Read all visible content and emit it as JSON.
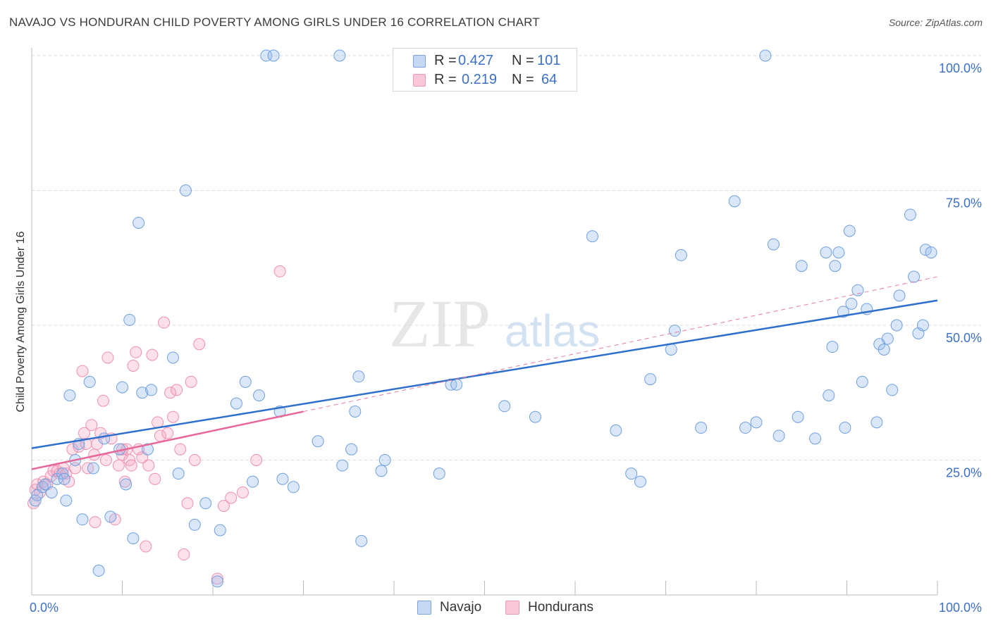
{
  "title": "NAVAJO VS HONDURAN CHILD POVERTY AMONG GIRLS UNDER 16 CORRELATION CHART",
  "source": "Source: ZipAtlas.com",
  "watermark": {
    "zip": "ZIP",
    "atlas": "atlas"
  },
  "legend": {
    "rows": [
      {
        "r_label": "R =",
        "r_value": "0.427",
        "n_label": "N =",
        "n_value": "101",
        "color": "#6f9fe0"
      },
      {
        "r_label": "R =",
        "r_value": "0.219",
        "n_label": "N =",
        "n_value": "64",
        "color": "#f08fb0"
      }
    ]
  },
  "bottom_legend": [
    {
      "label": "Navajo",
      "color": "#6f9fe0"
    },
    {
      "label": "Hondurans",
      "color": "#f08fb0"
    }
  ],
  "chart_data": {
    "type": "scatter",
    "title": "NAVAJO VS HONDURAN CHILD POVERTY AMONG GIRLS UNDER 16 CORRELATION CHART",
    "xlabel": "",
    "ylabel": "Child Poverty Among Girls Under 16",
    "xlim": [
      0,
      100
    ],
    "ylim": [
      0,
      100
    ],
    "x_tick_labels": [
      "0.0%",
      "100.0%"
    ],
    "y_ticks": [
      25,
      50,
      75,
      100
    ],
    "y_tick_labels": [
      "25.0%",
      "50.0%",
      "75.0%",
      "100.0%"
    ],
    "grid": true,
    "legend_position": "top-center",
    "series": [
      {
        "name": "Navajo",
        "color": "#6f9fe0",
        "trend": {
          "x": [
            0,
            100
          ],
          "y": [
            27.2,
            54.6
          ],
          "style": "solid"
        },
        "points": [
          [
            0.4,
            17.5
          ],
          [
            0.6,
            18.5
          ],
          [
            1.2,
            20
          ],
          [
            1.5,
            20.5
          ],
          [
            2.2,
            19
          ],
          [
            2.8,
            21.5
          ],
          [
            3.4,
            22.5
          ],
          [
            3.6,
            21.5
          ],
          [
            3.8,
            17.5
          ],
          [
            4.2,
            37
          ],
          [
            4.8,
            25
          ],
          [
            5.2,
            28
          ],
          [
            5.6,
            14
          ],
          [
            6.4,
            39.5
          ],
          [
            6.8,
            23.5
          ],
          [
            7.4,
            4.5
          ],
          [
            8.0,
            29
          ],
          [
            8.7,
            14.5
          ],
          [
            9.7,
            27
          ],
          [
            10.0,
            38.5
          ],
          [
            10.4,
            20.5
          ],
          [
            10.8,
            51
          ],
          [
            11.2,
            10.5
          ],
          [
            11.8,
            69
          ],
          [
            12.2,
            37.5
          ],
          [
            12.8,
            27
          ],
          [
            13.2,
            38
          ],
          [
            15.6,
            44
          ],
          [
            16.2,
            22.5
          ],
          [
            17.0,
            75
          ],
          [
            18.0,
            13
          ],
          [
            19.2,
            17
          ],
          [
            20.5,
            2.5
          ],
          [
            20.8,
            12
          ],
          [
            22.6,
            35.5
          ],
          [
            23.6,
            39.5
          ],
          [
            24.4,
            21
          ],
          [
            25.1,
            37
          ],
          [
            25.9,
            100
          ],
          [
            26.7,
            100
          ],
          [
            27.4,
            34
          ],
          [
            27.7,
            21.5
          ],
          [
            28.9,
            20
          ],
          [
            31.6,
            28.5
          ],
          [
            34.0,
            100
          ],
          [
            34.3,
            24
          ],
          [
            35.3,
            27
          ],
          [
            35.7,
            34
          ],
          [
            36.1,
            40.5
          ],
          [
            36.4,
            10
          ],
          [
            38.6,
            23
          ],
          [
            39.0,
            25
          ],
          [
            42.1,
            100
          ],
          [
            45.0,
            22.5
          ],
          [
            46.3,
            39
          ],
          [
            46.9,
            39
          ],
          [
            52.2,
            35
          ],
          [
            55.6,
            33
          ],
          [
            61.9,
            66.5
          ],
          [
            64.5,
            30.5
          ],
          [
            66.2,
            22.5
          ],
          [
            67.2,
            21
          ],
          [
            68.3,
            40
          ],
          [
            70.6,
            45.5
          ],
          [
            71.0,
            49
          ],
          [
            71.7,
            63
          ],
          [
            73.9,
            31
          ],
          [
            77.6,
            73
          ],
          [
            78.8,
            31
          ],
          [
            80.0,
            32
          ],
          [
            81.0,
            100
          ],
          [
            81.9,
            65
          ],
          [
            82.5,
            29.5
          ],
          [
            84.6,
            33
          ],
          [
            85.0,
            61
          ],
          [
            86.5,
            29
          ],
          [
            87.7,
            63.5
          ],
          [
            88.0,
            37
          ],
          [
            88.4,
            46
          ],
          [
            88.7,
            61
          ],
          [
            89.1,
            63.5
          ],
          [
            89.6,
            52.5
          ],
          [
            89.8,
            31
          ],
          [
            90.3,
            67.5
          ],
          [
            90.5,
            54
          ],
          [
            91.2,
            56.5
          ],
          [
            91.7,
            39.5
          ],
          [
            92.2,
            53
          ],
          [
            93.3,
            32
          ],
          [
            93.6,
            46.5
          ],
          [
            94.1,
            45.5
          ],
          [
            94.5,
            47.5
          ],
          [
            95.0,
            38
          ],
          [
            95.5,
            50
          ],
          [
            95.8,
            55.5
          ],
          [
            97.0,
            70.5
          ],
          [
            97.4,
            59
          ],
          [
            97.9,
            48.5
          ],
          [
            98.4,
            50
          ],
          [
            98.7,
            64
          ],
          [
            99.3,
            63.5
          ]
        ]
      },
      {
        "name": "Hondurans",
        "color": "#f08fb0",
        "trend": {
          "x": [
            0,
            30
          ],
          "y": [
            23.3,
            34.0
          ],
          "style": "solid",
          "extended_dashed_to": [
            100,
            59.0
          ]
        },
        "points": [
          [
            0.2,
            17
          ],
          [
            0.4,
            19.5
          ],
          [
            0.6,
            20.5
          ],
          [
            0.9,
            19
          ],
          [
            1.3,
            21
          ],
          [
            1.7,
            20.5
          ],
          [
            2.1,
            22
          ],
          [
            2.4,
            23
          ],
          [
            2.8,
            23
          ],
          [
            3.1,
            22.5
          ],
          [
            3.5,
            23.5
          ],
          [
            3.8,
            22.5
          ],
          [
            4.1,
            21
          ],
          [
            4.5,
            27
          ],
          [
            4.8,
            23.5
          ],
          [
            5.2,
            27.5
          ],
          [
            5.6,
            41.5
          ],
          [
            5.8,
            30
          ],
          [
            6.2,
            23.5
          ],
          [
            6.6,
            31.5
          ],
          [
            6.9,
            26
          ],
          [
            7.2,
            28
          ],
          [
            7.6,
            30
          ],
          [
            7.9,
            36
          ],
          [
            8.2,
            25
          ],
          [
            8.4,
            44
          ],
          [
            8.8,
            29
          ],
          [
            9.2,
            14
          ],
          [
            9.6,
            24
          ],
          [
            10.0,
            26
          ],
          [
            10.3,
            21
          ],
          [
            10.5,
            27
          ],
          [
            10.8,
            25
          ],
          [
            11.2,
            42.5
          ],
          [
            11.5,
            45
          ],
          [
            11.8,
            27
          ],
          [
            12.2,
            25.5
          ],
          [
            12.6,
            9
          ],
          [
            12.9,
            24
          ],
          [
            13.3,
            44.5
          ],
          [
            13.6,
            21.5
          ],
          [
            13.9,
            32
          ],
          [
            14.2,
            29.5
          ],
          [
            14.6,
            50.5
          ],
          [
            15.0,
            30
          ],
          [
            15.3,
            37.5
          ],
          [
            15.6,
            33
          ],
          [
            16.0,
            38
          ],
          [
            16.4,
            27
          ],
          [
            16.8,
            7.5
          ],
          [
            17.2,
            17
          ],
          [
            17.6,
            39.5
          ],
          [
            18.0,
            25
          ],
          [
            18.5,
            46.5
          ],
          [
            20.5,
            3
          ],
          [
            21.2,
            16.5
          ],
          [
            22.0,
            18
          ],
          [
            23.3,
            19
          ],
          [
            24.8,
            25
          ],
          [
            27.4,
            60
          ],
          [
            6.0,
            28
          ],
          [
            7.0,
            13.5
          ],
          [
            11.0,
            24
          ],
          [
            10.0,
            27
          ]
        ]
      }
    ]
  }
}
